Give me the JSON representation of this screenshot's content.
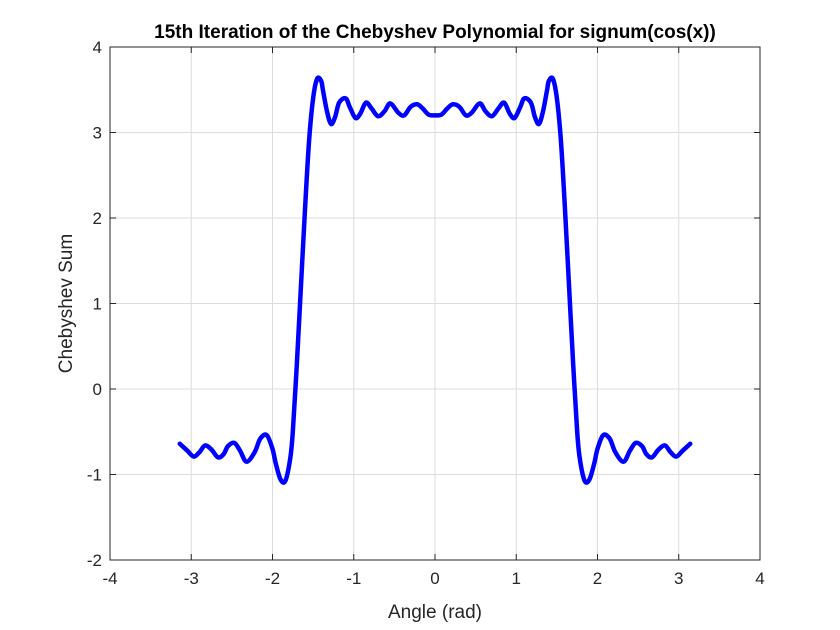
{
  "chart_data": {
    "type": "line",
    "title": "15th Iteration of the Chebyshev Polynomial for signum(cos(x))",
    "xlabel": "Angle (rad)",
    "ylabel": "Chebyshev Sum",
    "xlim": [
      -4,
      4
    ],
    "ylim": [
      -2,
      4
    ],
    "xticks": [
      -4,
      -3,
      -2,
      -1,
      0,
      1,
      2,
      3,
      4
    ],
    "yticks": [
      -2,
      -1,
      0,
      1,
      2,
      3,
      4
    ],
    "grid": true,
    "series": [
      {
        "color": "#0000ff",
        "x": [
          -3.1416,
          -3.05,
          -2.97,
          -2.9,
          -2.83,
          -2.75,
          -2.67,
          -2.6,
          -2.55,
          -2.47,
          -2.4,
          -2.32,
          -2.22,
          -2.15,
          -2.07,
          -2.0,
          -1.96,
          -1.9,
          -1.84,
          -1.78,
          -1.75,
          -1.7,
          -1.65,
          -1.6,
          -1.55,
          -1.5,
          -1.45,
          -1.4,
          -1.38,
          -1.33,
          -1.28,
          -1.23,
          -1.18,
          -1.1,
          -1.05,
          -0.98,
          -0.92,
          -0.85,
          -0.78,
          -0.7,
          -0.62,
          -0.55,
          -0.45,
          -0.38,
          -0.3,
          -0.22,
          -0.15,
          -0.08,
          0.0,
          0.08,
          0.15,
          0.22,
          0.3,
          0.38,
          0.45,
          0.55,
          0.62,
          0.7,
          0.78,
          0.85,
          0.92,
          0.98,
          1.05,
          1.1,
          1.18,
          1.23,
          1.28,
          1.33,
          1.38,
          1.4,
          1.45,
          1.5,
          1.55,
          1.6,
          1.65,
          1.7,
          1.75,
          1.78,
          1.84,
          1.9,
          1.96,
          2.0,
          2.07,
          2.15,
          2.22,
          2.32,
          2.4,
          2.47,
          2.55,
          2.6,
          2.67,
          2.75,
          2.83,
          2.9,
          2.97,
          3.05,
          3.1416
        ],
        "y": [
          -0.64,
          -0.72,
          -0.79,
          -0.74,
          -0.66,
          -0.71,
          -0.8,
          -0.76,
          -0.67,
          -0.63,
          -0.72,
          -0.85,
          -0.74,
          -0.58,
          -0.54,
          -0.7,
          -0.87,
          -1.06,
          -1.07,
          -0.8,
          -0.5,
          0.3,
          1.2,
          2.1,
          2.9,
          3.4,
          3.63,
          3.6,
          3.5,
          3.25,
          3.1,
          3.18,
          3.35,
          3.4,
          3.3,
          3.17,
          3.22,
          3.35,
          3.28,
          3.19,
          3.25,
          3.34,
          3.23,
          3.2,
          3.3,
          3.33,
          3.28,
          3.21,
          3.2,
          3.21,
          3.28,
          3.33,
          3.3,
          3.2,
          3.23,
          3.34,
          3.25,
          3.19,
          3.28,
          3.35,
          3.22,
          3.17,
          3.3,
          3.4,
          3.35,
          3.18,
          3.1,
          3.25,
          3.5,
          3.6,
          3.63,
          3.4,
          2.9,
          2.1,
          1.2,
          0.3,
          -0.5,
          -0.8,
          -1.07,
          -1.06,
          -0.87,
          -0.7,
          -0.54,
          -0.58,
          -0.74,
          -0.85,
          -0.72,
          -0.63,
          -0.67,
          -0.76,
          -0.8,
          -0.71,
          -0.66,
          -0.74,
          -0.79,
          -0.72,
          -0.64
        ]
      }
    ]
  }
}
